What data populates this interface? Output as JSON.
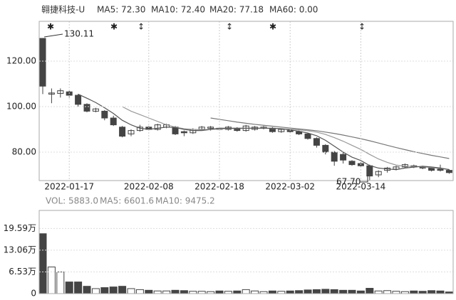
{
  "chart_data": [
    {
      "type": "candlestick",
      "title": "翱捷科技-U",
      "legend_labels": [
        "MA5: 72.30",
        "MA10: 72.40",
        "MA20: 77.18",
        "MA60: 0.00"
      ],
      "annotations": [
        "130.11",
        "67.70"
      ],
      "categories": [
        null,
        null,
        null,
        "2022-01-17",
        null,
        null,
        null,
        null,
        null,
        null,
        null,
        null,
        "2022-02-08",
        null,
        null,
        null,
        null,
        null,
        null,
        null,
        "2022-02-18",
        null,
        null,
        null,
        null,
        null,
        null,
        null,
        "2022-03-02",
        null,
        null,
        null,
        null,
        null,
        null,
        null,
        "2022-03-14",
        null,
        null,
        null,
        null,
        null,
        null,
        null,
        null,
        null,
        null
      ],
      "open": [
        130,
        105.5,
        105.8,
        106.5,
        105,
        101,
        98,
        98,
        95,
        91,
        88,
        89.5,
        91,
        90,
        91,
        91,
        89,
        88.5,
        90,
        90.5,
        90.5,
        90,
        90.5,
        89.5,
        90,
        90.5,
        90.5,
        89,
        89.5,
        89,
        88,
        86,
        83,
        80,
        79,
        76,
        75,
        74,
        70,
        72,
        72.5,
        73.5,
        74,
        73.5,
        73,
        72.5,
        72
      ],
      "high": [
        130.11,
        108,
        108,
        107,
        105.5,
        101.5,
        99.5,
        98.5,
        96,
        91.5,
        90,
        92,
        91.5,
        92.5,
        92.5,
        91.5,
        89.5,
        90.5,
        91.5,
        91.5,
        91,
        91.5,
        91,
        92,
        91.5,
        91.5,
        91,
        90.5,
        90,
        89.5,
        88.5,
        86.5,
        83.5,
        80.5,
        80,
        76.5,
        75.5,
        74.5,
        72,
        73.5,
        74,
        75,
        74.5,
        74,
        73.5,
        74.5,
        72.5
      ],
      "low": [
        105.5,
        101.5,
        104,
        104,
        100,
        97.5,
        97.5,
        94,
        91.5,
        86.5,
        87,
        89,
        89.5,
        89.5,
        90.5,
        87.5,
        87,
        88,
        89.5,
        89.5,
        89.5,
        89.5,
        89,
        89,
        89.5,
        90,
        88.5,
        88.5,
        88.5,
        87.5,
        85.5,
        82,
        79,
        74,
        75,
        74,
        73.5,
        67.7,
        69,
        71,
        72,
        73,
        73,
        72.5,
        71.5,
        71.5,
        70.5
      ],
      "close": [
        109,
        106,
        107,
        105,
        101,
        98,
        99,
        95,
        92,
        87,
        89.5,
        91,
        90,
        92,
        92,
        88,
        88.5,
        90,
        91,
        91,
        90,
        91,
        89.5,
        91.5,
        91,
        91,
        89,
        90,
        89,
        88,
        86,
        83,
        80,
        76,
        76.5,
        74.5,
        74,
        69.5,
        71.5,
        73,
        73.5,
        74.5,
        73.5,
        73,
        72,
        72,
        71
      ],
      "up_color": "#ffffff",
      "down_color": "#444444",
      "series": [
        {
          "name": "MA5",
          "color": "#555555",
          "values": [
            null,
            null,
            null,
            null,
            105.5,
            103.7,
            101.8,
            99.5,
            97,
            94,
            92,
            90.5,
            90,
            90.5,
            91,
            90.8,
            90,
            89.5,
            89.5,
            90,
            90.5,
            90.5,
            90.5,
            90.5,
            90.5,
            90.5,
            90.5,
            90.3,
            89.8,
            89.2,
            88.4,
            87.2,
            85.2,
            82.6,
            80,
            77.8,
            76.3,
            74.1,
            73,
            72.6,
            72.3,
            73,
            73.4,
            73.8,
            73.5,
            73,
            72.3
          ]
        },
        {
          "name": "MA10",
          "color": "#999999",
          "values": [
            null,
            null,
            null,
            null,
            null,
            null,
            null,
            null,
            null,
            100,
            98,
            96.5,
            95,
            93.5,
            92,
            91,
            90.3,
            90,
            89.8,
            90,
            90.2,
            90.3,
            90.4,
            90.5,
            90.5,
            90.5,
            90.4,
            90.3,
            90.1,
            89.8,
            89.4,
            88.8,
            87.8,
            86.4,
            84.8,
            83,
            81.2,
            79,
            77,
            75.5,
            74.3,
            73.8,
            73.7,
            73.5,
            73.2,
            72.8,
            72.4
          ]
        },
        {
          "name": "MA20",
          "color": "#777777",
          "values": [
            null,
            null,
            null,
            null,
            null,
            null,
            null,
            null,
            null,
            null,
            null,
            null,
            null,
            null,
            null,
            null,
            null,
            null,
            null,
            95,
            94.4,
            93.8,
            93.2,
            92.7,
            92.2,
            91.8,
            91.4,
            91,
            90.6,
            90.2,
            89.8,
            89.4,
            88.8,
            88.2,
            87.5,
            86.7,
            85.9,
            85,
            84,
            83,
            82,
            81.1,
            80.2,
            79.4,
            78.6,
            77.9,
            77.18
          ]
        }
      ],
      "ylim": [
        67.5,
        137.5
      ],
      "yticks": [
        {
          "value": 80,
          "label": "80.00"
        },
        {
          "value": 100,
          "label": "100.00"
        },
        {
          "value": 120,
          "label": "120.00"
        }
      ],
      "grid": true
    },
    {
      "type": "bar",
      "legend_labels": [
        "VOL: 5883.0",
        "MA5: 6601.6",
        "MA10: 9475.2"
      ],
      "values": [
        18,
        8,
        6.5,
        3.5,
        3.5,
        2.2,
        1.5,
        1.8,
        2,
        2.2,
        1.5,
        1.2,
        1,
        0.8,
        0.8,
        1,
        0.9,
        0.7,
        0.7,
        0.6,
        0.8,
        0.7,
        0.8,
        1.2,
        0.8,
        0.6,
        0.8,
        0.7,
        0.8,
        0.9,
        1.1,
        1.2,
        1.3,
        1.2,
        1,
        1,
        0.8,
        1.6,
        0.8,
        0.9,
        0.7,
        0.6,
        0.8,
        0.7,
        0.9,
        0.8,
        0.5
      ],
      "ylim": [
        0,
        25
      ],
      "yticks": [
        0,
        {
          "value": 6.53,
          "label": "6.53万"
        },
        {
          "value": 13.06,
          "label": "13.06万"
        },
        {
          "value": 19.59,
          "label": "19.59万"
        }
      ],
      "grid": true
    }
  ]
}
